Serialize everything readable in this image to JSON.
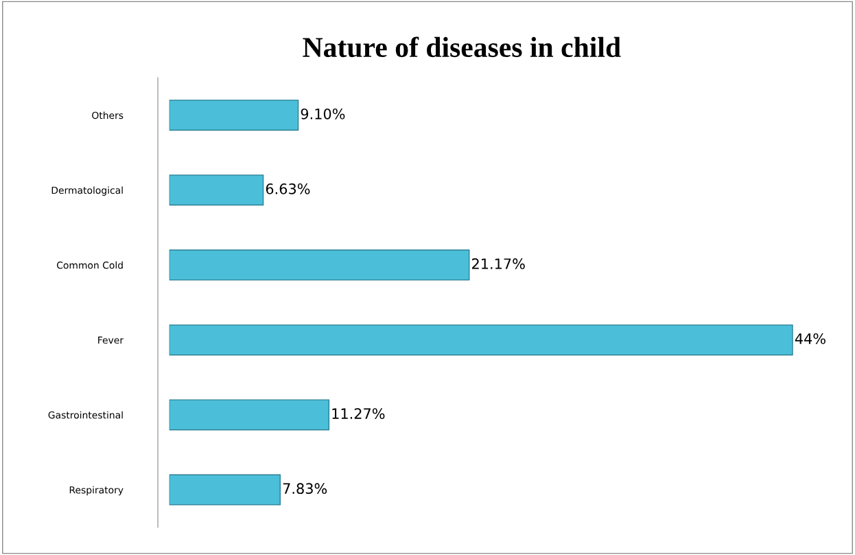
{
  "chart_data": {
    "type": "bar",
    "orientation": "horizontal",
    "title": "Nature of diseases in child",
    "categories": [
      "Others",
      "Dermatological",
      "Common Cold",
      "Fever",
      "Gastrointestinal",
      "Respiratory"
    ],
    "values": [
      9.1,
      6.63,
      21.17,
      44,
      11.27,
      7.83
    ],
    "value_labels": [
      "9.10%",
      "6.63%",
      "21.17%",
      "44%",
      "11.27%",
      "7.83%"
    ],
    "color": "#4bbfd9",
    "grid": false,
    "legend": false
  }
}
